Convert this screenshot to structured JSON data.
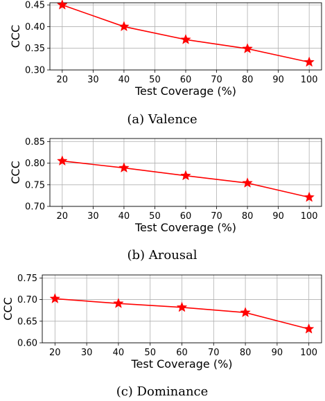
{
  "chart_data": [
    {
      "type": "line",
      "caption": "(a)  Valence",
      "xlabel": "Test Coverage (%)",
      "ylabel": "CCC",
      "x": [
        20,
        40,
        60,
        80,
        100
      ],
      "y": [
        0.45,
        0.4,
        0.37,
        0.349,
        0.318
      ],
      "xticks": [
        "20",
        "30",
        "40",
        "50",
        "60",
        "70",
        "80",
        "90",
        "100"
      ],
      "yticks": [
        "0.30",
        "0.35",
        "0.40",
        "0.45"
      ],
      "xlim": [
        16,
        104
      ],
      "ylim": [
        0.3,
        0.455
      ],
      "grid": true,
      "color": "#ff0000",
      "marker": "star"
    },
    {
      "type": "line",
      "caption": "(b)  Arousal",
      "xlabel": "Test Coverage (%)",
      "ylabel": "CCC",
      "x": [
        20,
        40,
        60,
        80,
        100
      ],
      "y": [
        0.805,
        0.789,
        0.771,
        0.754,
        0.721
      ],
      "xticks": [
        "20",
        "30",
        "40",
        "50",
        "60",
        "70",
        "80",
        "90",
        "100"
      ],
      "yticks": [
        "0.70",
        "0.75",
        "0.80",
        "0.85"
      ],
      "xlim": [
        16,
        104
      ],
      "ylim": [
        0.7,
        0.857
      ],
      "grid": true,
      "color": "#ff0000",
      "marker": "star"
    },
    {
      "type": "line",
      "caption": "(c)  Dominance",
      "xlabel": "Test Coverage (%)",
      "ylabel": "CCC",
      "x": [
        20,
        40,
        60,
        80,
        100
      ],
      "y": [
        0.702,
        0.691,
        0.682,
        0.67,
        0.632
      ],
      "xticks": [
        "20",
        "30",
        "40",
        "50",
        "60",
        "70",
        "80",
        "90",
        "100"
      ],
      "yticks": [
        "0.60",
        "0.65",
        "0.70",
        "0.75"
      ],
      "xlim": [
        16,
        104
      ],
      "ylim": [
        0.6,
        0.757
      ],
      "grid": true,
      "color": "#ff0000",
      "marker": "star"
    }
  ]
}
